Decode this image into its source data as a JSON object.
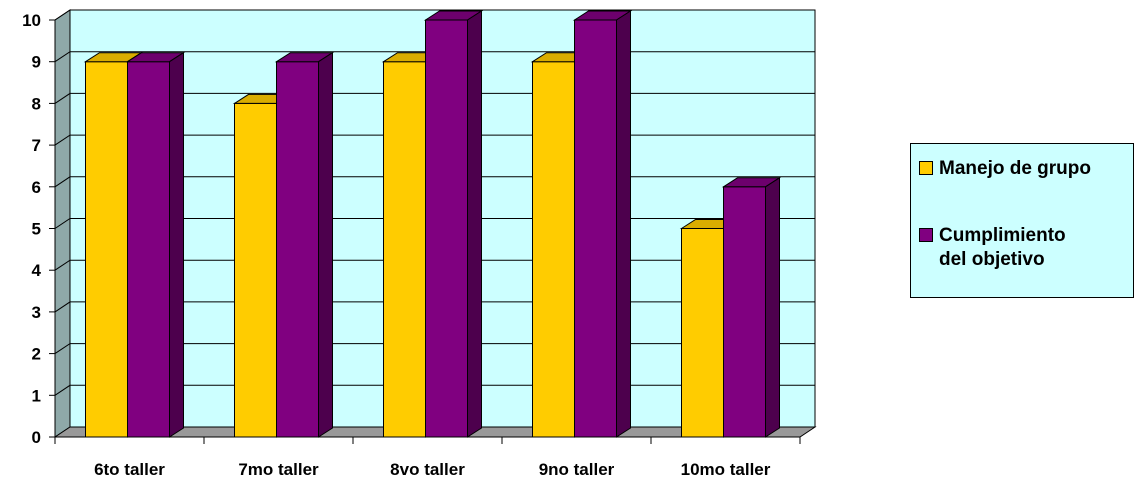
{
  "chart_data": {
    "type": "bar",
    "categories": [
      "6to taller",
      "7mo taller",
      "8vo taller",
      "9no taller",
      "10mo taller"
    ],
    "series": [
      {
        "name": "Manejo de grupo",
        "values": [
          9,
          8,
          9,
          9,
          5
        ],
        "color": "#ffcc00"
      },
      {
        "name": "Cumplimiento del objetivo",
        "values": [
          9,
          9,
          10,
          10,
          6
        ],
        "color": "#800080"
      }
    ],
    "ylim": [
      0,
      10
    ],
    "yticks": [
      "0",
      "1",
      "2",
      "3",
      "4",
      "5",
      "6",
      "7",
      "8",
      "9",
      "10"
    ],
    "grid": true,
    "legend_position": "right",
    "plot_background": "#ccffff",
    "wall_color": "#8fa9a9"
  },
  "legend": {
    "item1": "Manejo de grupo",
    "item2": "Cumplimiento\ndel objetivo"
  }
}
